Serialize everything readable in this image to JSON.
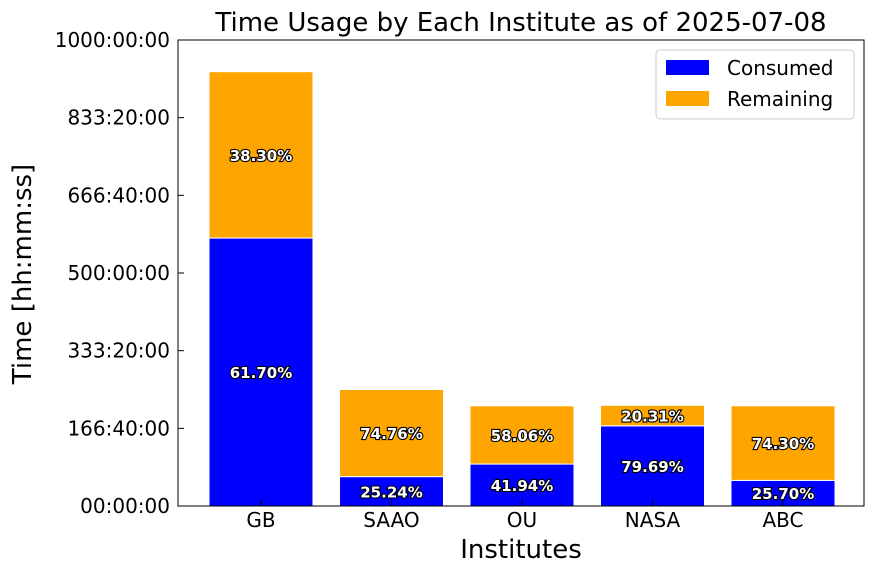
{
  "chart_data": {
    "type": "bar",
    "title": "Time Usage by Each Institute as of 2025-07-08",
    "xlabel": "Institutes",
    "ylabel": "Time [hh:mm:ss]",
    "ylim_hours": [
      0,
      1000
    ],
    "yticks_hours": [
      0,
      166.667,
      333.333,
      500,
      666.667,
      833.333,
      1000
    ],
    "ytick_labels": [
      "00:00:00",
      "166:40:00",
      "333:20:00",
      "500:00:00",
      "666:40:00",
      "833:20:00",
      "1000:00:00"
    ],
    "categories": [
      "GB",
      "SAAO",
      "OU",
      "NASA",
      "ABC"
    ],
    "stacked": true,
    "series": [
      {
        "name": "Consumed",
        "color": "#0000ff",
        "values_hours": [
          575,
          63,
          90,
          172,
          55
        ],
        "labels": [
          "61.70%",
          "25.24%",
          "41.94%",
          "79.69%",
          "25.70%"
        ]
      },
      {
        "name": "Remaining",
        "color": "#ffa500",
        "values_hours": [
          357,
          187,
          125,
          44,
          160
        ],
        "labels": [
          "38.30%",
          "74.76%",
          "58.06%",
          "20.31%",
          "74.30%"
        ]
      }
    ],
    "legend_position": "top-right",
    "grid": false
  }
}
